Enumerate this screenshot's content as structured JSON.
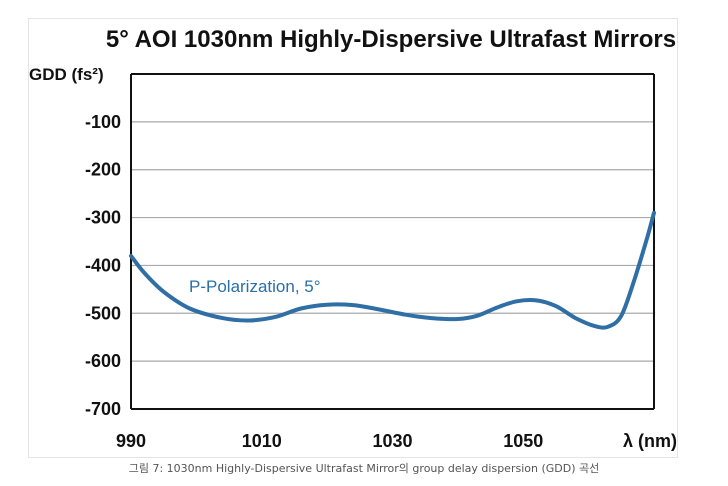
{
  "colors": {
    "curve": "#2f6fa5",
    "grid": "#a9a9a9",
    "axis": "#111111"
  },
  "caption": "그림 7: 1030nm Highly-Dispersive Ultrafast Mirror의 group delay dispersion (GDD) 곡선",
  "chart_data": {
    "type": "line",
    "title": "5° AOI 1030nm Highly-Dispersive Ultrafast Mirrors",
    "ylabel": "GDD (fs²)",
    "xlabel": "λ (nm)",
    "xlim": [
      990,
      1070
    ],
    "ylim": [
      -700,
      0
    ],
    "x_ticks": [
      990,
      1010,
      1030,
      1050
    ],
    "y_ticks": [
      -100,
      -200,
      -300,
      -400,
      -500,
      -600,
      -700
    ],
    "grid": true,
    "annotation": "P-Polarization, 5°",
    "series": [
      {
        "x": [
          990,
          992,
          995,
          999,
          1004,
          1008,
          1012,
          1016,
          1020,
          1024,
          1028,
          1032,
          1036,
          1040,
          1043,
          1046,
          1049,
          1052,
          1055,
          1058,
          1061,
          1063,
          1065,
          1067,
          1069,
          1070
        ],
        "y": [
          -380,
          -415,
          -455,
          -490,
          -510,
          -515,
          -508,
          -490,
          -482,
          -483,
          -492,
          -503,
          -510,
          -512,
          -505,
          -488,
          -475,
          -473,
          -485,
          -510,
          -527,
          -528,
          -505,
          -430,
          -340,
          -290
        ]
      }
    ]
  }
}
